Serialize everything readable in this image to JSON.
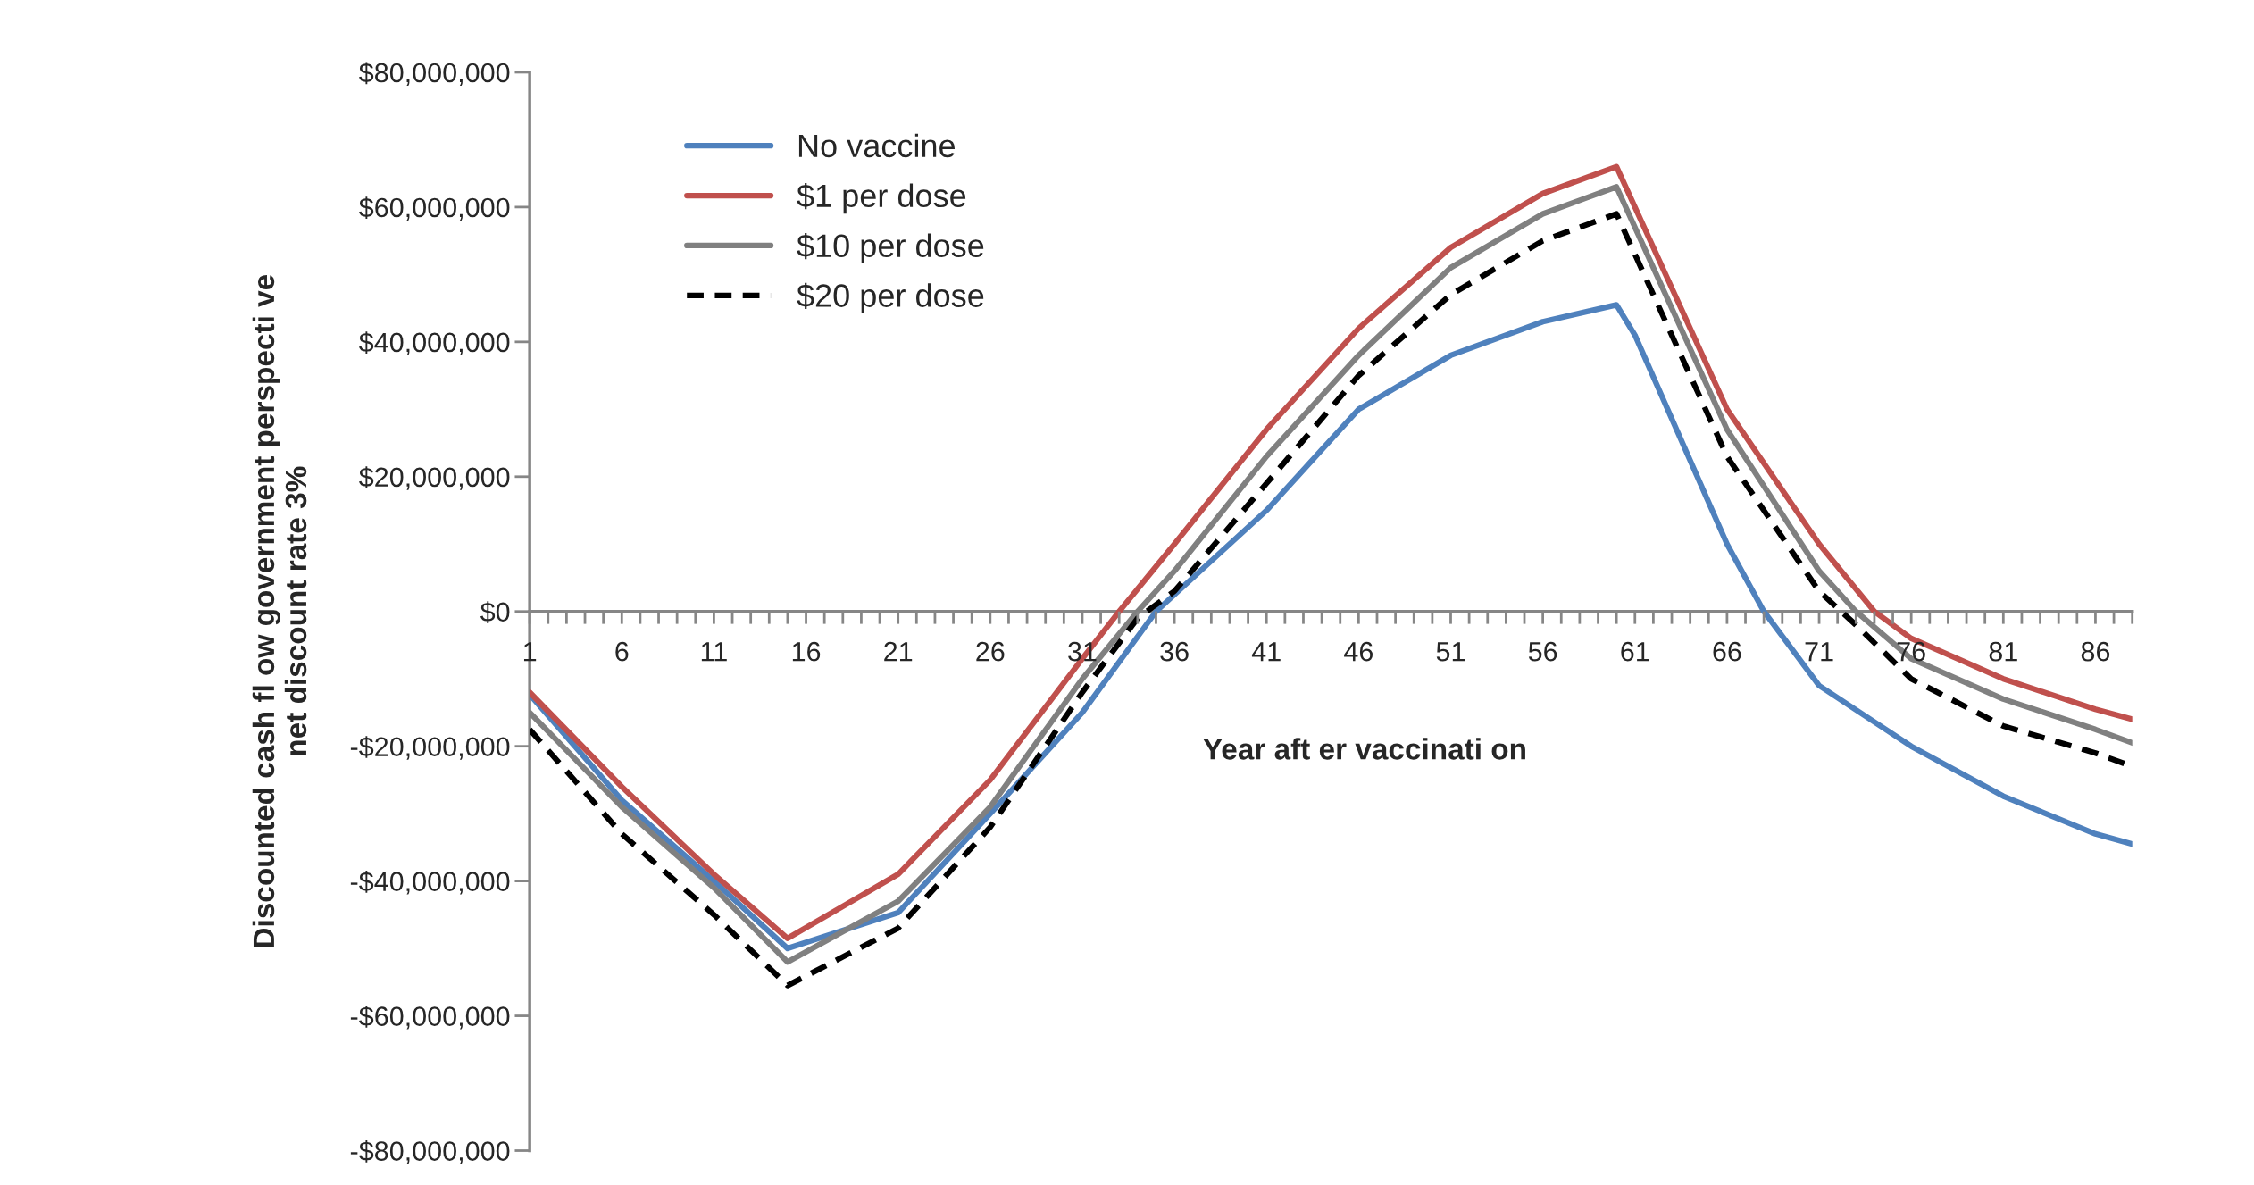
{
  "chart_data": {
    "type": "line",
    "xlabel": "Year aft er vaccinati on",
    "ylabel": "Discounted cash fl ow government perspecti ve\nnet discount rate 3%",
    "xlim": [
      1,
      88
    ],
    "xticks": [
      1,
      {
        "value": 2,
        "label": null
      },
      {
        "value": 3,
        "label": null
      },
      {
        "value": 4,
        "label": null
      },
      {
        "value": 5,
        "label": null
      },
      6,
      {
        "value": 7,
        "label": null
      },
      {
        "value": 8,
        "label": null
      },
      {
        "value": 9,
        "label": null
      },
      {
        "value": 10,
        "label": null
      },
      11,
      {
        "value": 12,
        "label": null
      },
      {
        "value": 13,
        "label": null
      },
      {
        "value": 14,
        "label": null
      },
      {
        "value": 15,
        "label": null
      },
      16,
      {
        "value": 17,
        "label": null
      },
      {
        "value": 18,
        "label": null
      },
      {
        "value": 19,
        "label": null
      },
      {
        "value": 20,
        "label": null
      },
      21,
      {
        "value": 22,
        "label": null
      },
      {
        "value": 23,
        "label": null
      },
      {
        "value": 24,
        "label": null
      },
      {
        "value": 25,
        "label": null
      },
      26,
      {
        "value": 27,
        "label": null
      },
      {
        "value": 28,
        "label": null
      },
      {
        "value": 29,
        "label": null
      },
      {
        "value": 30,
        "label": null
      },
      31,
      {
        "value": 32,
        "label": null
      },
      {
        "value": 33,
        "label": null
      },
      {
        "value": 34,
        "label": null
      },
      {
        "value": 35,
        "label": null
      },
      36,
      {
        "value": 37,
        "label": null
      },
      {
        "value": 38,
        "label": null
      },
      {
        "value": 39,
        "label": null
      },
      {
        "value": 40,
        "label": null
      },
      41,
      {
        "value": 42,
        "label": null
      },
      {
        "value": 43,
        "label": null
      },
      {
        "value": 44,
        "label": null
      },
      {
        "value": 45,
        "label": null
      },
      46,
      {
        "value": 47,
        "label": null
      },
      {
        "value": 48,
        "label": null
      },
      {
        "value": 49,
        "label": null
      },
      {
        "value": 50,
        "label": null
      },
      51,
      {
        "value": 52,
        "label": null
      },
      {
        "value": 53,
        "label": null
      },
      {
        "value": 54,
        "label": null
      },
      {
        "value": 55,
        "label": null
      },
      56,
      {
        "value": 57,
        "label": null
      },
      {
        "value": 58,
        "label": null
      },
      {
        "value": 59,
        "label": null
      },
      {
        "value": 60,
        "label": null
      },
      61,
      {
        "value": 62,
        "label": null
      },
      {
        "value": 63,
        "label": null
      },
      {
        "value": 64,
        "label": null
      },
      {
        "value": 65,
        "label": null
      },
      66,
      {
        "value": 67,
        "label": null
      },
      {
        "value": 68,
        "label": null
      },
      {
        "value": 69,
        "label": null
      },
      {
        "value": 70,
        "label": null
      },
      71,
      {
        "value": 72,
        "label": null
      },
      {
        "value": 73,
        "label": null
      },
      {
        "value": 74,
        "label": null
      },
      {
        "value": 75,
        "label": null
      },
      76,
      {
        "value": 77,
        "label": null
      },
      {
        "value": 78,
        "label": null
      },
      {
        "value": 79,
        "label": null
      },
      {
        "value": 80,
        "label": null
      },
      81,
      {
        "value": 82,
        "label": null
      },
      {
        "value": 83,
        "label": null
      },
      {
        "value": 84,
        "label": null
      },
      {
        "value": 85,
        "label": null
      },
      86,
      {
        "value": 87,
        "label": null
      },
      {
        "value": 88,
        "label": null
      }
    ],
    "ylim": [
      -80000000,
      80000000
    ],
    "yticks": [
      {
        "value": -80000000,
        "label": "-$80,000,000"
      },
      {
        "value": -60000000,
        "label": "-$60,000,000"
      },
      {
        "value": -40000000,
        "label": "-$40,000,000"
      },
      {
        "value": -20000000,
        "label": "-$20,000,000"
      },
      {
        "value": 0,
        "label": "$0"
      },
      {
        "value": 20000000,
        "label": "$20,000,000"
      },
      {
        "value": 40000000,
        "label": "$40,000,000"
      },
      {
        "value": 60000000,
        "label": "$60,000,000"
      },
      {
        "value": 80000000,
        "label": "$80,000,000"
      }
    ],
    "legend": "top left",
    "grid": false,
    "series": [
      {
        "name": "No vaccine",
        "color": "#4f81bd",
        "line_style": "solid",
        "x": [
          1,
          6,
          11,
          15,
          21,
          26,
          31,
          35,
          41,
          46,
          51,
          56,
          60,
          61,
          66,
          68,
          71,
          76,
          81,
          86,
          88
        ],
        "values": [
          -12300000,
          -28000000,
          -40000000,
          -50000000,
          -44700000,
          -30000000,
          -15000000,
          0,
          15000000,
          30000000,
          38000000,
          43000000,
          45500000,
          41000000,
          10000000,
          0,
          -11000000,
          -20000000,
          -27400000,
          -33000000,
          -34500000
        ]
      },
      {
        "name": "$1 per dose",
        "color": "#c0504d",
        "line_style": "solid",
        "x": [
          1,
          6,
          11,
          15,
          21,
          26,
          31,
          33,
          36,
          41,
          46,
          51,
          56,
          60,
          66,
          71,
          74,
          76,
          81,
          86,
          88
        ],
        "values": [
          -12000000,
          -26000000,
          -39000000,
          -48500000,
          -39000000,
          -25000000,
          -7000000,
          0,
          10000000,
          27000000,
          42000000,
          54000000,
          62000000,
          66000000,
          30000000,
          10000000,
          0,
          -4000000,
          -10000000,
          -14500000,
          -16000000
        ]
      },
      {
        "name": "$10 per dose",
        "color": "#808080",
        "line_style": "solid",
        "x": [
          1,
          6,
          11,
          15,
          21,
          26,
          31,
          34,
          36,
          41,
          46,
          51,
          56,
          60,
          66,
          71,
          73,
          76,
          81,
          86,
          88
        ],
        "values": [
          -15000000,
          -29000000,
          -41000000,
          -52000000,
          -43000000,
          -29000000,
          -10000000,
          0,
          6000000,
          23000000,
          38000000,
          51000000,
          59000000,
          63000000,
          27000000,
          6000000,
          0,
          -7000000,
          -13000000,
          -17500000,
          -19500000
        ]
      },
      {
        "name": "$20 per dose",
        "color": "#000000",
        "line_style": "dashed",
        "x": [
          1,
          6,
          11,
          15,
          21,
          26,
          31,
          34,
          36,
          41,
          46,
          51,
          56,
          60,
          66,
          71,
          73,
          76,
          81,
          86,
          88
        ],
        "values": [
          -17500000,
          -33000000,
          -45000000,
          -55500000,
          -47000000,
          -32000000,
          -12000000,
          -1000000,
          3000000,
          19000000,
          35000000,
          47000000,
          55000000,
          59000000,
          23000000,
          3000000,
          -2000000,
          -10000000,
          -17000000,
          -21000000,
          -23000000
        ]
      }
    ]
  }
}
